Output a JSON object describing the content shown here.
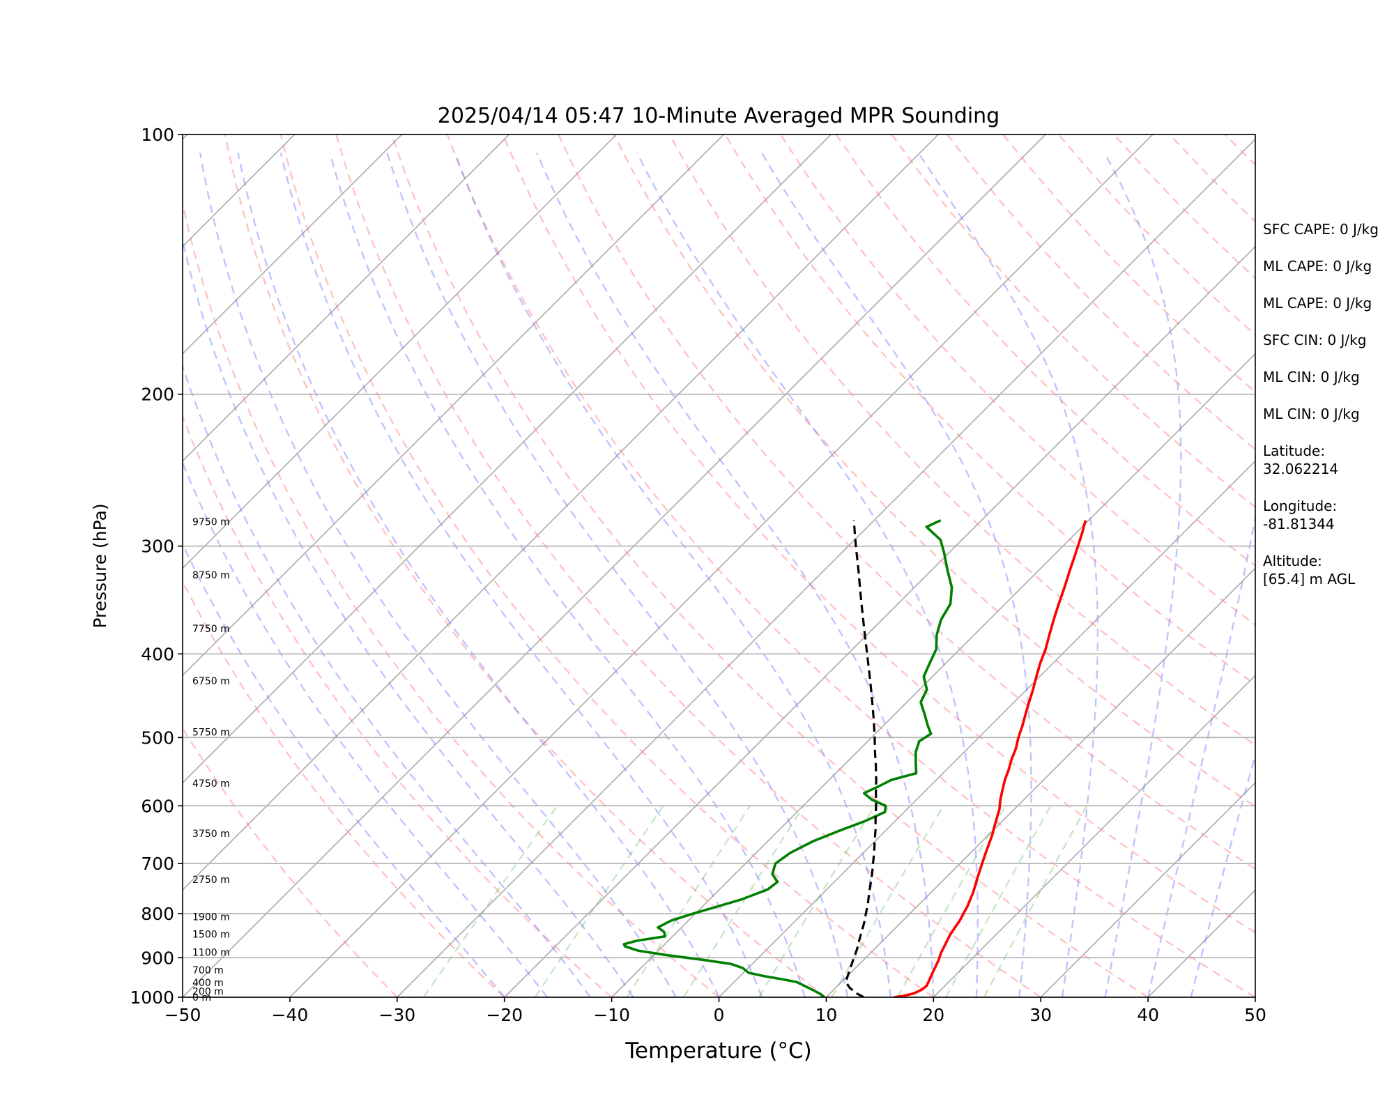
{
  "chart_data": {
    "type": "line",
    "title": "2025/04/14 05:47 10-Minute Averaged MPR Sounding",
    "xlabel": "Temperature (°C)",
    "ylabel": "Pressure (hPa)",
    "xlim": [
      -50,
      50
    ],
    "ylim": [
      1000,
      100
    ],
    "y_scale": "log",
    "x_ticks": [
      "−50",
      "−40",
      "−30",
      "−20",
      "−10",
      "0",
      "10",
      "20",
      "30",
      "40",
      "50"
    ],
    "y_ticks": [
      "100",
      "200",
      "300",
      "400",
      "500",
      "600",
      "700",
      "800",
      "900",
      "1000"
    ],
    "grid": "horizontal at y ticks",
    "height_labels": [
      {
        "p": 1000,
        "label": "0 m"
      },
      {
        "p": 984,
        "label": "200 m"
      },
      {
        "p": 962,
        "label": "400 m"
      },
      {
        "p": 930,
        "label": "700 m"
      },
      {
        "p": 887,
        "label": "1100 m"
      },
      {
        "p": 845,
        "label": "1500 m"
      },
      {
        "p": 807,
        "label": "1900 m"
      },
      {
        "p": 730,
        "label": "2750 m"
      },
      {
        "p": 646,
        "label": "3750 m"
      },
      {
        "p": 565,
        "label": "4750 m"
      },
      {
        "p": 493,
        "label": "5750 m"
      },
      {
        "p": 430,
        "label": "6750 m"
      },
      {
        "p": 374,
        "label": "7750 m"
      },
      {
        "p": 324,
        "label": "8750 m"
      },
      {
        "p": 281,
        "label": "9750 m"
      }
    ],
    "series": [
      {
        "color": "#ff0000",
        "p": [
          1000,
          997,
          990,
          980,
          970,
          960,
          950,
          935,
          920,
          905,
          890,
          875,
          860,
          845,
          830,
          815,
          800,
          785,
          770,
          755,
          740,
          725,
          710,
          695,
          680,
          665,
          650,
          635,
          620,
          605,
          590,
          575,
          560,
          545,
          530,
          515,
          500,
          485,
          470,
          455,
          440,
          425,
          410,
          395,
          380,
          365,
          350,
          335,
          320,
          305,
          290,
          280
        ],
        "t": [
          16.3,
          17.0,
          17.8,
          18.2,
          18.3,
          18.1,
          17.9,
          17.6,
          17.3,
          17.0,
          16.6,
          16.3,
          16.0,
          15.7,
          15.5,
          15.3,
          15.0,
          14.7,
          14.3,
          13.9,
          13.4,
          12.9,
          12.4,
          11.9,
          11.4,
          10.9,
          10.4,
          9.8,
          9.2,
          8.6,
          7.8,
          7.1,
          6.4,
          5.8,
          5.1,
          4.5,
          3.7,
          3.0,
          2.2,
          1.4,
          0.6,
          -0.3,
          -1.2,
          -2.0,
          -3.0,
          -4.0,
          -5.0,
          -6.0,
          -7.1,
          -8.2,
          -9.4,
          -10.3
        ]
      },
      {
        "color": "#008000",
        "p": [
          1000,
          992,
          982,
          970,
          960,
          953,
          945,
          937,
          925,
          915,
          905,
          893,
          883,
          873,
          868,
          860,
          850,
          840,
          830,
          815,
          800,
          785,
          770,
          750,
          735,
          720,
          700,
          680,
          660,
          640,
          625,
          610,
          600,
          590,
          580,
          570,
          560,
          550,
          535,
          520,
          505,
          495,
          485,
          470,
          455,
          440,
          425,
          410,
          395,
          380,
          365,
          350,
          335,
          320,
          305,
          295,
          285,
          280
        ],
        "t": [
          9.8,
          9.2,
          8.2,
          6.9,
          5.8,
          4.2,
          2.2,
          0.5,
          -0.5,
          -2.0,
          -5.0,
          -9.0,
          -11.9,
          -13.5,
          -13.8,
          -12.9,
          -10.7,
          -11.2,
          -12.2,
          -11.6,
          -10.2,
          -8.6,
          -7.0,
          -5.5,
          -5.3,
          -6.5,
          -7.2,
          -6.8,
          -5.8,
          -4.2,
          -2.8,
          -1.8,
          -2.3,
          -4.2,
          -5.5,
          -4.8,
          -4.2,
          -2.5,
          -3.5,
          -4.5,
          -5.2,
          -4.8,
          -5.8,
          -7.2,
          -8.7,
          -9.3,
          -10.8,
          -11.5,
          -12.2,
          -13.5,
          -14.5,
          -15.1,
          -16.5,
          -18.5,
          -20.5,
          -22.0,
          -24.5,
          -23.8
        ]
      },
      {
        "color": "#000000",
        "dashed": true,
        "p": [
          1000,
          990,
          975,
          960,
          940,
          920,
          900,
          880,
          860,
          840,
          820,
          800,
          780,
          760,
          740,
          720,
          700,
          680,
          660,
          640,
          620,
          600,
          580,
          560,
          540,
          520,
          500,
          480,
          460,
          440,
          420,
          400,
          380,
          360,
          340,
          320,
          300,
          280
        ],
        "t": [
          13.5,
          12.5,
          11.3,
          10.4,
          9.9,
          9.4,
          8.9,
          8.4,
          7.8,
          7.2,
          6.6,
          5.9,
          5.2,
          4.4,
          3.6,
          2.8,
          1.9,
          1.0,
          0.0,
          -1.0,
          -2.1,
          -3.2,
          -4.4,
          -5.6,
          -6.9,
          -8.3,
          -9.7,
          -11.2,
          -12.8,
          -14.5,
          -16.3,
          -18.2,
          -20.2,
          -22.3,
          -24.5,
          -26.8,
          -29.3,
          -31.9
        ]
      }
    ]
  },
  "side_info": [
    "SFC CAPE: 0 J/kg",
    "ML CAPE: 0 J/kg",
    "ML CAPE: 0 J/kg",
    "SFC CIN: 0 J/kg",
    "ML CIN: 0 J/kg",
    "ML CIN: 0 J/kg",
    "Latitude:\n32.062214",
    "Longitude:\n-81.81344",
    "Altitude:\n[65.4] m AGL"
  ]
}
